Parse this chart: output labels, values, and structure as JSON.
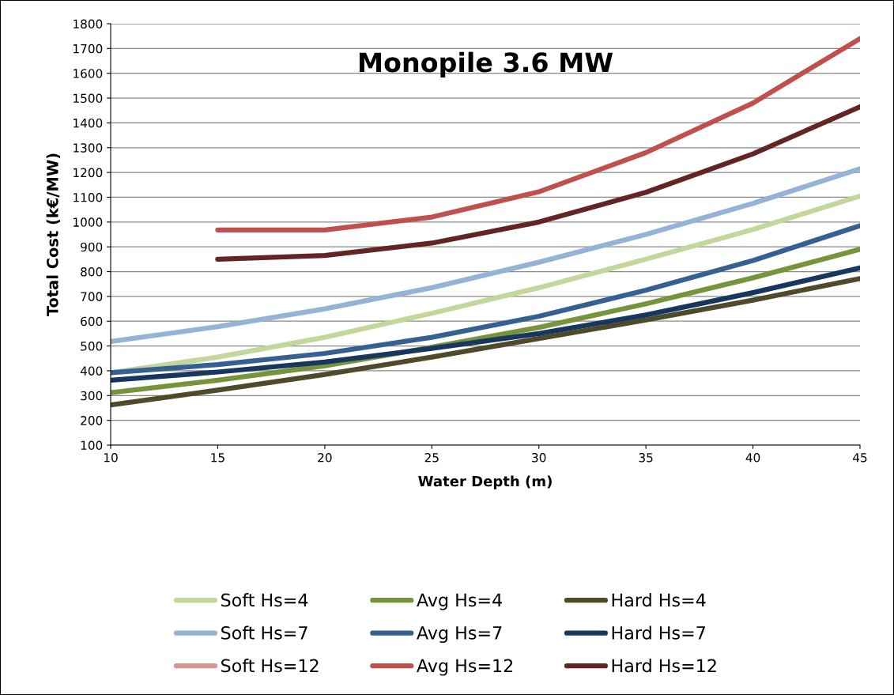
{
  "chart_data": {
    "type": "line",
    "title": "Monopile 3.6 MW",
    "xlabel": "Water Depth (m)",
    "ylabel": "Total Cost (k€/MW)",
    "x": [
      10,
      15,
      20,
      25,
      30,
      35,
      40,
      45
    ],
    "xlim": [
      10,
      45
    ],
    "xticks": [
      10,
      15,
      20,
      25,
      30,
      35,
      40,
      45
    ],
    "ylim": [
      100,
      1800
    ],
    "yticks": [
      100,
      200,
      300,
      400,
      500,
      600,
      700,
      800,
      900,
      1000,
      1100,
      1200,
      1300,
      1400,
      1500,
      1600,
      1700,
      1800
    ],
    "grid": "y",
    "legend": "bottom",
    "marker": "none",
    "line_style": "solid",
    "series": [
      {
        "name": "Soft Hs=4",
        "color": "#c3d69b",
        "values": [
          392,
          455,
          535,
          632,
          735,
          850,
          970,
          1105
        ]
      },
      {
        "name": "Avg Hs=4",
        "color": "#77933c",
        "values": [
          312,
          362,
          420,
          495,
          575,
          670,
          775,
          890
        ]
      },
      {
        "name": "Hard Hs=4",
        "color": "#4f4a2a",
        "values": [
          262,
          322,
          385,
          455,
          530,
          605,
          685,
          772
        ]
      },
      {
        "name": "Soft Hs=7",
        "color": "#95b3d7",
        "values": [
          518,
          578,
          650,
          735,
          838,
          950,
          1075,
          1215
        ]
      },
      {
        "name": "Avg Hs=7",
        "color": "#376092",
        "values": [
          392,
          425,
          470,
          535,
          620,
          725,
          845,
          985
        ]
      },
      {
        "name": "Hard Hs=7",
        "color": "#17375e",
        "values": [
          362,
          395,
          435,
          490,
          550,
          625,
          715,
          815
        ]
      },
      {
        "name": "Soft Hs=12",
        "color": "#d99694",
        "values": [
          null,
          null,
          null,
          null,
          null,
          null,
          null,
          null
        ]
      },
      {
        "name": "Avg Hs=12",
        "color": "#c0504d",
        "values": [
          null,
          968,
          968,
          1020,
          1122,
          1280,
          1480,
          1740
        ]
      },
      {
        "name": "Hard Hs=12",
        "color": "#632523",
        "values": [
          null,
          850,
          865,
          915,
          1000,
          1120,
          1275,
          1465
        ]
      }
    ]
  }
}
